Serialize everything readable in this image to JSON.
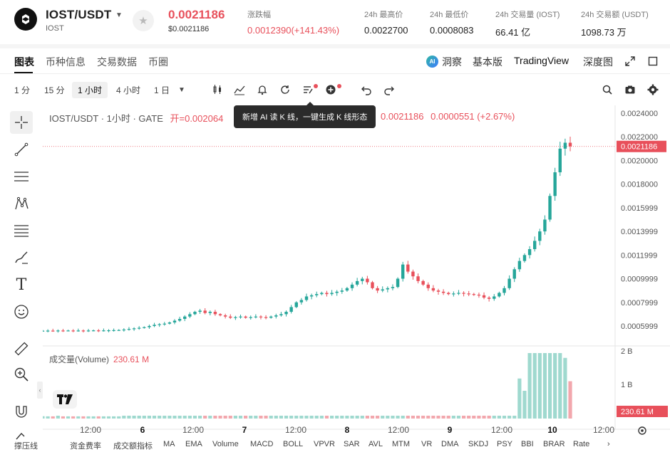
{
  "ticker": {
    "pair": "IOST/USDT",
    "base": "IOST",
    "last_price": "0.0021186",
    "last_price_usd": "$0.0021186",
    "stats": [
      {
        "label": "涨跌幅",
        "value": "0.0012390(+141.43%)",
        "color": "red"
      },
      {
        "label": "24h 最高价",
        "value": "0.0022700"
      },
      {
        "label": "24h 最低价",
        "value": "0.0008083"
      },
      {
        "label": "24h 交易量 (IOST)",
        "value": "66.41 亿"
      },
      {
        "label": "24h 交易额 (USDT)",
        "value": "1098.73 万"
      }
    ]
  },
  "tabs": [
    "图表",
    "币种信息",
    "交易数据",
    "币圈"
  ],
  "right_tabs": {
    "ai": "洞察",
    "basic": "基本版",
    "tv": "TradingView",
    "depth": "深度图"
  },
  "toolbar": {
    "timeframes": [
      "1 分",
      "15 分",
      "1 小时",
      "4 小时",
      "1 日"
    ],
    "active_timeframe": "1 小时"
  },
  "tooltip": "新增 AI 读 K 线，一键生成 K 线形态",
  "legend": {
    "title": "IOST/USDT · 1小时 · GATE",
    "open": "开=0.002064",
    "close_part": "0.0021186",
    "change": "0.0000551 (+2.67%)"
  },
  "volume": {
    "label": "成交量(Volume)",
    "value": "230.61 M"
  },
  "price_axis": [
    "0.0024000",
    "0.0022000",
    "0.0020000",
    "0.0018000",
    "0.0015999",
    "0.0013999",
    "0.0011999",
    "0.0009999",
    "0.0007999",
    "0.0005999"
  ],
  "last_price_label": "0.0021186",
  "volume_axis": [
    "2 B",
    "1 B"
  ],
  "volume_last_label": "230.61 M",
  "time_axis": [
    "12:00",
    "6",
    "12:00",
    "7",
    "12:00",
    "8",
    "12:00",
    "9",
    "12:00",
    "10",
    "12:00"
  ],
  "indicators": [
    "撑压线",
    "资金费率",
    "成交额指标",
    "MA",
    "EMA",
    "Volume",
    "MACD",
    "BOLL",
    "VPVR",
    "SAR",
    "AVL",
    "MTM",
    "VR",
    "DMA",
    "SKDJ",
    "PSY",
    "BBI",
    "BRAR",
    "Rate"
  ],
  "colors": {
    "up": "#26a69a",
    "down": "#e8505b",
    "up_vol": "#9fd9cf",
    "down_vol": "#f2a7ad"
  },
  "chart_data": {
    "type": "candlestick",
    "interval": "1 小时",
    "y_range": [
      0.0004999,
      0.0024
    ],
    "candles_close_profile": [
      0.00056,
      0.000561,
      0.00056,
      0.000562,
      0.000561,
      0.000562,
      0.000561,
      0.000562,
      0.000561,
      0.000562,
      0.000563,
      0.000562,
      0.000563,
      0.000564,
      0.000565,
      0.000566,
      0.00057,
      0.000575,
      0.00058,
      0.000585,
      0.00059,
      0.0006,
      0.00061,
      0.000615,
      0.00062,
      0.00063,
      0.000645,
      0.00066,
      0.00068,
      0.0007,
      0.00072,
      0.00073,
      0.00071,
      0.00072,
      0.0007,
      0.00069,
      0.00068,
      0.00067,
      0.000675,
      0.00068,
      0.00067,
      0.000675,
      0.00068,
      0.000675,
      0.00067,
      0.00068,
      0.00069,
      0.0007,
      0.00072,
      0.00076,
      0.0008,
      0.00082,
      0.00085,
      0.00086,
      0.00087,
      0.00088,
      0.00087,
      0.00088,
      0.00089,
      0.0009,
      0.00092,
      0.00095,
      0.00098,
      0.001,
      0.00097,
      0.00092,
      0.0009,
      0.00091,
      0.00092,
      0.00093,
      0.001,
      0.00112,
      0.00106,
      0.00102,
      0.00098,
      0.00095,
      0.00092,
      0.0009,
      0.00089,
      0.00088,
      0.00087,
      0.000875,
      0.00088,
      0.000875,
      0.00087,
      0.000865,
      0.00086,
      0.00084,
      0.00083,
      0.00085,
      0.00088,
      0.00092,
      0.001,
      0.00108,
      0.00115,
      0.0012,
      0.00125,
      0.00132,
      0.0014,
      0.0015,
      0.0017,
      0.0019,
      0.0021,
      0.00215,
      0.00212
    ]
  }
}
